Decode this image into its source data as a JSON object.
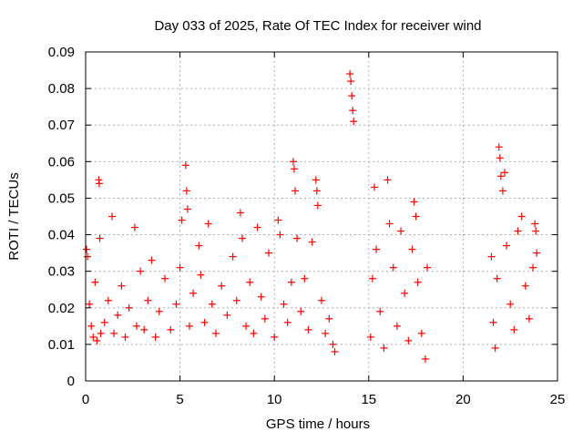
{
  "chart_data": {
    "type": "scatter",
    "title": "Day 033 of 2025, Rate Of TEC Index for receiver wind",
    "xlabel": "GPS time / hours",
    "ylabel": "ROTI / TECUs",
    "xlim": [
      0,
      25
    ],
    "ylim": [
      0,
      0.09
    ],
    "x_ticks": [
      0,
      5,
      10,
      15,
      20,
      25
    ],
    "y_ticks": [
      0,
      0.01,
      0.02,
      0.03,
      0.04,
      0.05,
      0.06,
      0.07,
      0.08,
      0.09
    ],
    "x_tick_labels": [
      "0",
      "5",
      "10",
      "15",
      "20",
      "25"
    ],
    "y_tick_labels": [
      "0",
      "0.01",
      "0.02",
      "0.03",
      "0.04",
      "0.05",
      "0.06",
      "0.07",
      "0.08",
      "0.09"
    ],
    "grid": true,
    "legend": "none",
    "marker": "+",
    "marker_color": "#ff0000",
    "series": [
      {
        "points": [
          [
            0.05,
            0.036
          ],
          [
            0.1,
            0.034
          ],
          [
            0.2,
            0.021
          ],
          [
            0.3,
            0.015
          ],
          [
            0.4,
            0.012
          ],
          [
            0.5,
            0.027
          ],
          [
            0.6,
            0.011
          ],
          [
            0.7,
            0.055
          ],
          [
            0.72,
            0.054
          ],
          [
            0.75,
            0.039
          ],
          [
            0.8,
            0.013
          ],
          [
            1.0,
            0.016
          ],
          [
            1.2,
            0.022
          ],
          [
            1.4,
            0.045
          ],
          [
            1.5,
            0.013
          ],
          [
            1.7,
            0.018
          ],
          [
            1.9,
            0.026
          ],
          [
            2.1,
            0.012
          ],
          [
            2.3,
            0.02
          ],
          [
            2.6,
            0.042
          ],
          [
            2.7,
            0.015
          ],
          [
            2.9,
            0.03
          ],
          [
            3.1,
            0.014
          ],
          [
            3.3,
            0.022
          ],
          [
            3.5,
            0.033
          ],
          [
            3.7,
            0.012
          ],
          [
            3.9,
            0.019
          ],
          [
            4.2,
            0.028
          ],
          [
            4.5,
            0.014
          ],
          [
            4.8,
            0.021
          ],
          [
            5.0,
            0.031
          ],
          [
            5.1,
            0.044
          ],
          [
            5.3,
            0.059
          ],
          [
            5.35,
            0.052
          ],
          [
            5.4,
            0.047
          ],
          [
            5.5,
            0.015
          ],
          [
            5.7,
            0.024
          ],
          [
            6.0,
            0.037
          ],
          [
            6.1,
            0.029
          ],
          [
            6.3,
            0.016
          ],
          [
            6.5,
            0.043
          ],
          [
            6.7,
            0.021
          ],
          [
            6.9,
            0.013
          ],
          [
            7.2,
            0.026
          ],
          [
            7.5,
            0.018
          ],
          [
            7.8,
            0.034
          ],
          [
            8.0,
            0.022
          ],
          [
            8.2,
            0.046
          ],
          [
            8.3,
            0.039
          ],
          [
            8.5,
            0.015
          ],
          [
            8.7,
            0.027
          ],
          [
            8.9,
            0.013
          ],
          [
            9.1,
            0.042
          ],
          [
            9.3,
            0.023
          ],
          [
            9.5,
            0.017
          ],
          [
            9.7,
            0.035
          ],
          [
            10.0,
            0.012
          ],
          [
            10.2,
            0.044
          ],
          [
            10.3,
            0.04
          ],
          [
            10.5,
            0.021
          ],
          [
            10.7,
            0.016
          ],
          [
            10.9,
            0.027
          ],
          [
            11.0,
            0.06
          ],
          [
            11.05,
            0.058
          ],
          [
            11.1,
            0.052
          ],
          [
            11.2,
            0.039
          ],
          [
            11.4,
            0.019
          ],
          [
            11.6,
            0.028
          ],
          [
            11.8,
            0.014
          ],
          [
            12.0,
            0.038
          ],
          [
            12.2,
            0.055
          ],
          [
            12.25,
            0.052
          ],
          [
            12.3,
            0.048
          ],
          [
            12.5,
            0.022
          ],
          [
            12.7,
            0.013
          ],
          [
            12.9,
            0.017
          ],
          [
            13.1,
            0.01
          ],
          [
            13.2,
            0.008
          ],
          [
            14.0,
            0.084
          ],
          [
            14.05,
            0.082
          ],
          [
            14.1,
            0.078
          ],
          [
            14.15,
            0.074
          ],
          [
            14.2,
            0.071
          ],
          [
            15.1,
            0.012
          ],
          [
            15.2,
            0.028
          ],
          [
            15.3,
            0.053
          ],
          [
            15.4,
            0.036
          ],
          [
            15.6,
            0.019
          ],
          [
            15.8,
            0.009
          ],
          [
            16.0,
            0.055
          ],
          [
            16.1,
            0.043
          ],
          [
            16.3,
            0.031
          ],
          [
            16.5,
            0.015
          ],
          [
            16.7,
            0.041
          ],
          [
            16.9,
            0.024
          ],
          [
            17.1,
            0.011
          ],
          [
            17.3,
            0.036
          ],
          [
            17.4,
            0.049
          ],
          [
            17.5,
            0.045
          ],
          [
            17.6,
            0.027
          ],
          [
            17.8,
            0.013
          ],
          [
            18.0,
            0.006
          ],
          [
            18.1,
            0.031
          ],
          [
            21.5,
            0.034
          ],
          [
            21.6,
            0.016
          ],
          [
            21.7,
            0.009
          ],
          [
            21.8,
            0.028
          ],
          [
            21.9,
            0.064
          ],
          [
            21.95,
            0.061
          ],
          [
            22.0,
            0.056
          ],
          [
            22.1,
            0.052
          ],
          [
            22.2,
            0.057
          ],
          [
            22.3,
            0.037
          ],
          [
            22.5,
            0.021
          ],
          [
            22.7,
            0.014
          ],
          [
            22.9,
            0.041
          ],
          [
            23.1,
            0.045
          ],
          [
            23.3,
            0.026
          ],
          [
            23.5,
            0.017
          ],
          [
            23.7,
            0.031
          ],
          [
            23.8,
            0.043
          ],
          [
            23.85,
            0.041
          ],
          [
            23.9,
            0.035
          ]
        ]
      }
    ]
  }
}
